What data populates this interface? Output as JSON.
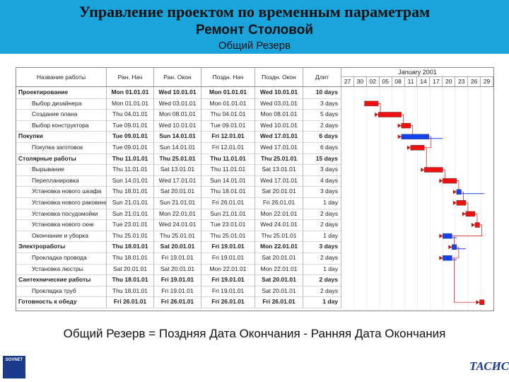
{
  "header": {
    "title": "Управление проектом по временным параметрам",
    "subtitle": "Ремонт Столовой",
    "caption": "Общий Резерв"
  },
  "table": {
    "columns": [
      "Название работы",
      "Ран. Нач",
      "Ран. Окон",
      "Поздн. Нач",
      "Поздн. Окон",
      "Длит"
    ],
    "month": "January 2001",
    "ticks": [
      "27",
      "30",
      "02",
      "05",
      "08",
      "11",
      "14",
      "17",
      "20",
      "23",
      "26",
      "29"
    ],
    "rows": [
      {
        "name": "Проектирование",
        "es": "Mon 01.01.01",
        "ef": "Wed 10.01.01",
        "ls": "Mon 01.01.01",
        "lf": "Wed 10.01.01",
        "dur": "10 days",
        "bold": true
      },
      {
        "name": "Выбор дизайнера",
        "es": "Mon 01.01.01",
        "ef": "Wed 03.01.01",
        "ls": "Mon 01.01.01",
        "lf": "Wed 03.01.01",
        "dur": "3 days",
        "bold": false
      },
      {
        "name": "Создание плана",
        "es": "Thu 04.01.01",
        "ef": "Mon 08.01.01",
        "ls": "Thu 04.01.01",
        "lf": "Mon 08.01.01",
        "dur": "5 days",
        "bold": false
      },
      {
        "name": "Выбор конструктора",
        "es": "Tue 09.01.01",
        "ef": "Wed 10.01.01",
        "ls": "Tue 09.01.01",
        "lf": "Wed 10.01.01",
        "dur": "2 days",
        "bold": false
      },
      {
        "name": "Покупки",
        "es": "Tue 09.01.01",
        "ef": "Sun 14.01.01",
        "ls": "Fri 12.01.01",
        "lf": "Wed 17.01.01",
        "dur": "6 days",
        "bold": true
      },
      {
        "name": "Покупка заготовок",
        "es": "Tue 09.01.01",
        "ef": "Sun 14.01.01",
        "ls": "Fri 12.01.01",
        "lf": "Wed 17.01.01",
        "dur": "6 days",
        "bold": false
      },
      {
        "name": "Столярные работы",
        "es": "Thu 11.01.01",
        "ef": "Thu 25.01.01",
        "ls": "Thu 11.01.01",
        "lf": "Thu 25.01.01",
        "dur": "15 days",
        "bold": true
      },
      {
        "name": "Вырывание",
        "es": "Thu 11.01.01",
        "ef": "Sat 13.01.01",
        "ls": "Thu 11.01.01",
        "lf": "Sat 13.01.01",
        "dur": "3 days",
        "bold": false
      },
      {
        "name": "Перепланировка",
        "es": "Sun 14.01.01",
        "ef": "Wed 17.01.01",
        "ls": "Sun 14.01.01",
        "lf": "Wed 17.01.01",
        "dur": "4 days",
        "bold": false
      },
      {
        "name": "Установка нового шкафа",
        "es": "Thu 18.01.01",
        "ef": "Sat 20.01.01",
        "ls": "Thu 18.01.01",
        "lf": "Sat 20.01.01",
        "dur": "3 days",
        "bold": false
      },
      {
        "name": "Установка нового раковины",
        "es": "Sun 21.01.01",
        "ef": "Sun 21.01.01",
        "ls": "Fri 26.01.01",
        "lf": "Fri 26.01.01",
        "dur": "1 day",
        "bold": false
      },
      {
        "name": "Установка посудомойки",
        "es": "Sun 21.01.01",
        "ef": "Mon 22.01.01",
        "ls": "Sun 21.01.01",
        "lf": "Mon 22.01.01",
        "dur": "2 days",
        "bold": false
      },
      {
        "name": "Установка нового скнк",
        "es": "Tue 23.01.01",
        "ef": "Wed 24.01.01",
        "ls": "Tue 23.01.01",
        "lf": "Wed 24.01.01",
        "dur": "2 days",
        "bold": false
      },
      {
        "name": "Окончание и уборка",
        "es": "Thu 25.01.01",
        "ef": "Thu 25.01.01",
        "ls": "Thu 25.01.01",
        "lf": "Thu 25.01.01",
        "dur": "1 day",
        "bold": false
      },
      {
        "name": "Электроработы",
        "es": "Thu 18.01.01",
        "ef": "Sat 20.01.01",
        "ls": "Fri 19.01.01",
        "lf": "Mon 22.01.01",
        "dur": "3 days",
        "bold": true
      },
      {
        "name": "Прокладка провода",
        "es": "Thu 18.01.01",
        "ef": "Fri 19.01.01",
        "ls": "Fri 19.01.01",
        "lf": "Sat 20.01.01",
        "dur": "2 days",
        "bold": false
      },
      {
        "name": "Установка люстры",
        "es": "Sat 20.01.01",
        "ef": "Sat 20.01.01",
        "ls": "Mon 22.01.01",
        "lf": "Mon 22.01.01",
        "dur": "1 day",
        "bold": false
      },
      {
        "name": "Сантехнические работы",
        "es": "Thu 18.01.01",
        "ef": "Fri 19.01.01",
        "ls": "Fri 19.01.01",
        "lf": "Sat 20.01.01",
        "dur": "2 days",
        "bold": true
      },
      {
        "name": "Прокладка труб",
        "es": "Thu 18.01.01",
        "ef": "Fri 19.01.01",
        "ls": "Fri 19.01.01",
        "lf": "Sat 20.01.01",
        "dur": "2 days",
        "bold": false
      },
      {
        "name": "Готовность к обеду",
        "es": "Fri 26.01.01",
        "ef": "Fri 26.01.01",
        "ls": "Fri 26.01.01",
        "lf": "Fri 26.01.01",
        "dur": "1 day",
        "bold": true
      }
    ]
  },
  "chart_data": {
    "type": "gantt",
    "x_unit": "January 2001 (day of month)",
    "xlim": [
      27,
      60
    ],
    "colors": {
      "critical": "#ee1111",
      "noncritical": "#1144ee",
      "float": "#1144ee",
      "arrow": "#cc1111"
    },
    "bars": [
      {
        "start": 32,
        "end": 34,
        "critical": true
      },
      {
        "start": 35,
        "end": 39,
        "critical": true
      },
      {
        "start": 40,
        "end": 41,
        "critical": true
      },
      {
        "start": 40,
        "end": 45,
        "critical": false,
        "float_end": 48
      },
      {
        "start": 42,
        "end": 44,
        "critical": true
      },
      {
        "start": 45,
        "end": 48,
        "critical": true
      },
      {
        "start": 49,
        "end": 51,
        "critical": true
      },
      {
        "start": 52,
        "end": 52,
        "critical": false,
        "float_end": 57
      },
      {
        "start": 52,
        "end": 53,
        "critical": true
      },
      {
        "start": 54,
        "end": 55,
        "critical": true
      },
      {
        "start": 56,
        "end": 56,
        "critical": true
      },
      {
        "start": 49,
        "end": 50,
        "critical": false,
        "float_end": 51
      },
      {
        "start": 51,
        "end": 51,
        "critical": false,
        "float_end": 53
      },
      {
        "start": 49,
        "end": 50,
        "critical": false,
        "float_end": 51
      },
      {
        "start": 57,
        "end": 57,
        "critical": true
      }
    ]
  },
  "footer": {
    "formula": "Общий Резерв = Поздняя Дата Окончания - Ранняя Дата Окончания",
    "logo_left": "SOVNET",
    "logo_right": "ТАСИС"
  }
}
